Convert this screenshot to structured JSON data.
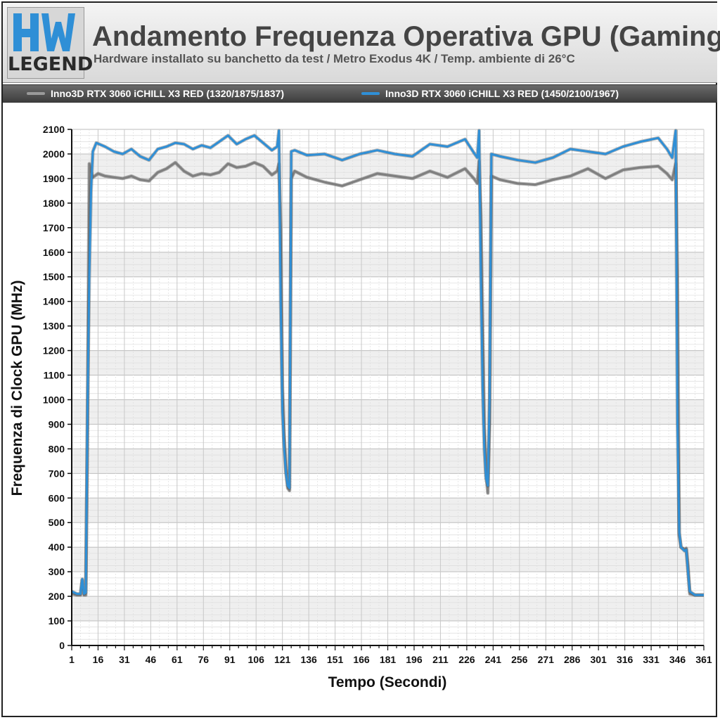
{
  "logo": {
    "text": "LEGEND",
    "mark": "hwu-logo"
  },
  "header": {
    "title": "Andamento Frequenza Operativa GPU (Gaming)",
    "subtitle": "Hardware installato su banchetto da test / Metro Exodus 4K / Temp. ambiente di 26°C"
  },
  "colors": {
    "series1": "#7f7f7f",
    "series2": "#2f8fd6"
  },
  "chart_data": {
    "type": "line",
    "title": "Andamento Frequenza Operativa GPU (Gaming)",
    "xlabel": "Tempo (Secondi)",
    "ylabel": "Frequenza di Clock GPU (MHz)",
    "xlim": [
      1,
      361
    ],
    "ylim": [
      0,
      2100
    ],
    "grid": true,
    "legend_position": "top",
    "x_ticks": [
      1,
      16,
      31,
      46,
      61,
      76,
      91,
      106,
      121,
      136,
      151,
      166,
      181,
      196,
      211,
      226,
      241,
      256,
      271,
      286,
      301,
      316,
      331,
      346,
      361
    ],
    "y_ticks": [
      0,
      100,
      200,
      300,
      400,
      500,
      600,
      700,
      800,
      900,
      1000,
      1100,
      1200,
      1300,
      1400,
      1500,
      1600,
      1700,
      1800,
      1900,
      2000,
      2100
    ],
    "series": [
      {
        "name": "Inno3D RTX 3060 iCHILL X3 RED (1320/1875/1837)",
        "points": [
          [
            1,
            210
          ],
          [
            4,
            205
          ],
          [
            6,
            205
          ],
          [
            7,
            265
          ],
          [
            8,
            205
          ],
          [
            9,
            205
          ],
          [
            10,
            900
          ],
          [
            11,
            1960
          ],
          [
            12,
            1930
          ],
          [
            13,
            1905
          ],
          [
            16,
            1920
          ],
          [
            20,
            1910
          ],
          [
            25,
            1905
          ],
          [
            30,
            1900
          ],
          [
            35,
            1910
          ],
          [
            40,
            1895
          ],
          [
            45,
            1890
          ],
          [
            50,
            1925
          ],
          [
            55,
            1940
          ],
          [
            60,
            1965
          ],
          [
            65,
            1930
          ],
          [
            70,
            1910
          ],
          [
            75,
            1920
          ],
          [
            80,
            1915
          ],
          [
            85,
            1925
          ],
          [
            90,
            1960
          ],
          [
            95,
            1945
          ],
          [
            100,
            1950
          ],
          [
            105,
            1965
          ],
          [
            110,
            1950
          ],
          [
            115,
            1915
          ],
          [
            118,
            1930
          ],
          [
            119,
            1960
          ],
          [
            120,
            1700
          ],
          [
            121,
            1050
          ],
          [
            122,
            850
          ],
          [
            123,
            720
          ],
          [
            124,
            640
          ],
          [
            125,
            630
          ],
          [
            126,
            1900
          ],
          [
            128,
            1930
          ],
          [
            135,
            1905
          ],
          [
            145,
            1885
          ],
          [
            155,
            1870
          ],
          [
            165,
            1895
          ],
          [
            175,
            1920
          ],
          [
            185,
            1910
          ],
          [
            195,
            1900
          ],
          [
            205,
            1930
          ],
          [
            215,
            1905
          ],
          [
            225,
            1940
          ],
          [
            230,
            1900
          ],
          [
            232,
            1880
          ],
          [
            233,
            1970
          ],
          [
            234,
            1750
          ],
          [
            235,
            1300
          ],
          [
            236,
            900
          ],
          [
            237,
            700
          ],
          [
            238,
            620
          ],
          [
            239,
            900
          ],
          [
            240,
            1910
          ],
          [
            245,
            1895
          ],
          [
            255,
            1880
          ],
          [
            265,
            1875
          ],
          [
            275,
            1895
          ],
          [
            285,
            1910
          ],
          [
            295,
            1940
          ],
          [
            305,
            1900
          ],
          [
            315,
            1935
          ],
          [
            325,
            1945
          ],
          [
            335,
            1950
          ],
          [
            340,
            1920
          ],
          [
            343,
            1895
          ],
          [
            345,
            1960
          ],
          [
            346,
            1500
          ],
          [
            347,
            450
          ],
          [
            348,
            400
          ],
          [
            350,
            390
          ],
          [
            351,
            395
          ],
          [
            352,
            320
          ],
          [
            353,
            210
          ],
          [
            356,
            205
          ],
          [
            361,
            205
          ]
        ]
      },
      {
        "name": "Inno3D RTX 3060 iCHILL X3 RED (1450/2100/1967)",
        "points": [
          [
            1,
            220
          ],
          [
            4,
            210
          ],
          [
            6,
            210
          ],
          [
            7,
            270
          ],
          [
            8,
            210
          ],
          [
            9,
            215
          ],
          [
            10,
            980
          ],
          [
            11,
            1500
          ],
          [
            12,
            1850
          ],
          [
            13,
            2010
          ],
          [
            15,
            2045
          ],
          [
            20,
            2030
          ],
          [
            25,
            2010
          ],
          [
            30,
            2000
          ],
          [
            35,
            2020
          ],
          [
            40,
            1990
          ],
          [
            45,
            1975
          ],
          [
            50,
            2020
          ],
          [
            55,
            2030
          ],
          [
            60,
            2045
          ],
          [
            65,
            2040
          ],
          [
            70,
            2020
          ],
          [
            75,
            2035
          ],
          [
            80,
            2025
          ],
          [
            85,
            2050
          ],
          [
            90,
            2075
          ],
          [
            95,
            2040
          ],
          [
            100,
            2060
          ],
          [
            105,
            2075
          ],
          [
            110,
            2045
          ],
          [
            115,
            2015
          ],
          [
            118,
            2030
          ],
          [
            119,
            2095
          ],
          [
            120,
            1400
          ],
          [
            121,
            950
          ],
          [
            122,
            800
          ],
          [
            123,
            700
          ],
          [
            124,
            650
          ],
          [
            125,
            640
          ],
          [
            126,
            2010
          ],
          [
            128,
            2015
          ],
          [
            135,
            1995
          ],
          [
            145,
            2000
          ],
          [
            155,
            1975
          ],
          [
            165,
            2000
          ],
          [
            175,
            2015
          ],
          [
            185,
            2000
          ],
          [
            195,
            1990
          ],
          [
            205,
            2040
          ],
          [
            215,
            2030
          ],
          [
            225,
            2060
          ],
          [
            230,
            2005
          ],
          [
            232,
            1985
          ],
          [
            233,
            2095
          ],
          [
            234,
            1500
          ],
          [
            235,
            1050
          ],
          [
            236,
            800
          ],
          [
            237,
            680
          ],
          [
            238,
            650
          ],
          [
            239,
            1000
          ],
          [
            240,
            2000
          ],
          [
            245,
            1990
          ],
          [
            255,
            1975
          ],
          [
            265,
            1965
          ],
          [
            275,
            1985
          ],
          [
            285,
            2020
          ],
          [
            295,
            2010
          ],
          [
            305,
            2000
          ],
          [
            315,
            2030
          ],
          [
            325,
            2050
          ],
          [
            335,
            2065
          ],
          [
            340,
            2020
          ],
          [
            343,
            1985
          ],
          [
            345,
            2095
          ],
          [
            346,
            900
          ],
          [
            347,
            460
          ],
          [
            348,
            400
          ],
          [
            350,
            385
          ],
          [
            351,
            390
          ],
          [
            352,
            300
          ],
          [
            353,
            220
          ],
          [
            356,
            205
          ],
          [
            361,
            205
          ]
        ]
      }
    ]
  }
}
